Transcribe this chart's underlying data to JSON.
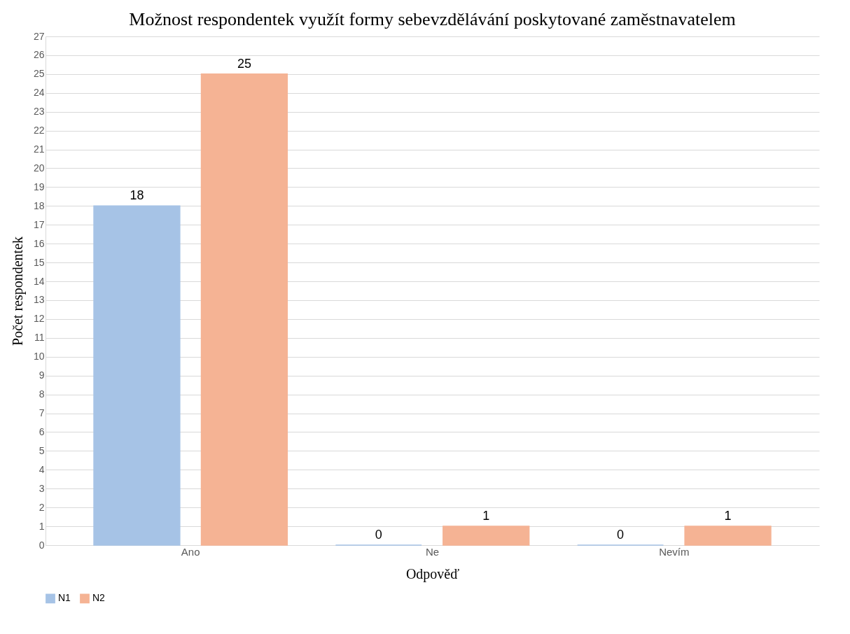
{
  "chart_data": {
    "type": "bar",
    "title": "Možnost respondentek využít formy sebevzdělávání poskytované zaměstnavatelem",
    "xlabel": "Odpověď",
    "ylabel": "Počet respondentek",
    "categories": [
      "Ano",
      "Ne",
      "Nevím"
    ],
    "series": [
      {
        "name": "N1",
        "color": "#a6c3e6",
        "values": [
          18,
          0,
          0
        ]
      },
      {
        "name": "N2",
        "color": "#f5b394",
        "values": [
          25,
          1,
          1
        ]
      }
    ],
    "ylim": [
      0,
      27
    ],
    "yticks": [
      0,
      1,
      2,
      3,
      4,
      5,
      6,
      7,
      8,
      9,
      10,
      11,
      12,
      13,
      14,
      15,
      16,
      17,
      18,
      19,
      20,
      21,
      22,
      23,
      24,
      25,
      26,
      27
    ],
    "grid": "y",
    "legend": "bottom",
    "data_labels": true
  }
}
